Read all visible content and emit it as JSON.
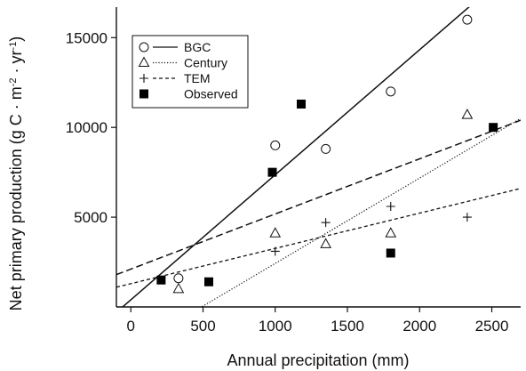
{
  "chart_data": {
    "type": "scatter",
    "title": "",
    "xlabel": "Annual precipitation (mm)",
    "ylabel_parts": [
      "Net primary production (g C · m",
      "-2",
      " · yr",
      "-1",
      ")"
    ],
    "xlim": [
      -100,
      2700
    ],
    "ylim": [
      0,
      16700
    ],
    "xticks": [
      0,
      500,
      1000,
      1500,
      2000,
      2500
    ],
    "yticks": [
      5000,
      10000,
      15000
    ],
    "grid": false,
    "legend_position": "top-left",
    "series": [
      {
        "name": "BGC",
        "marker": "circle",
        "line_style": "solid",
        "points": [
          [
            330,
            1600
          ],
          [
            1000,
            9000
          ],
          [
            1350,
            8800
          ],
          [
            1800,
            12000
          ],
          [
            2330,
            16000
          ]
        ],
        "fit_line": [
          [
            -100,
            -300
          ],
          [
            2700,
            19200
          ]
        ]
      },
      {
        "name": "Century",
        "marker": "triangle",
        "line_style": "dotted",
        "points": [
          [
            330,
            1000
          ],
          [
            1000,
            4100
          ],
          [
            1350,
            3500
          ],
          [
            1800,
            4100
          ],
          [
            2330,
            10700
          ]
        ],
        "fit_line": [
          [
            -100,
            -2800
          ],
          [
            2700,
            10500
          ]
        ]
      },
      {
        "name": "TEM",
        "marker": "plus",
        "line_style": "short-dash",
        "points": [
          [
            1000,
            3100
          ],
          [
            1350,
            4700
          ],
          [
            1800,
            5600
          ],
          [
            2330,
            5000
          ]
        ],
        "fit_line": [
          [
            -100,
            1100
          ],
          [
            2700,
            6600
          ]
        ]
      },
      {
        "name": "Observed",
        "marker": "filled-square",
        "line_style": "long-dash",
        "points": [
          [
            210,
            1500
          ],
          [
            540,
            1400
          ],
          [
            980,
            7500
          ],
          [
            1180,
            11300
          ],
          [
            1800,
            3000
          ],
          [
            2510,
            10000
          ]
        ],
        "fit_line": [
          [
            -100,
            1800
          ],
          [
            2700,
            10400
          ]
        ]
      }
    ]
  }
}
